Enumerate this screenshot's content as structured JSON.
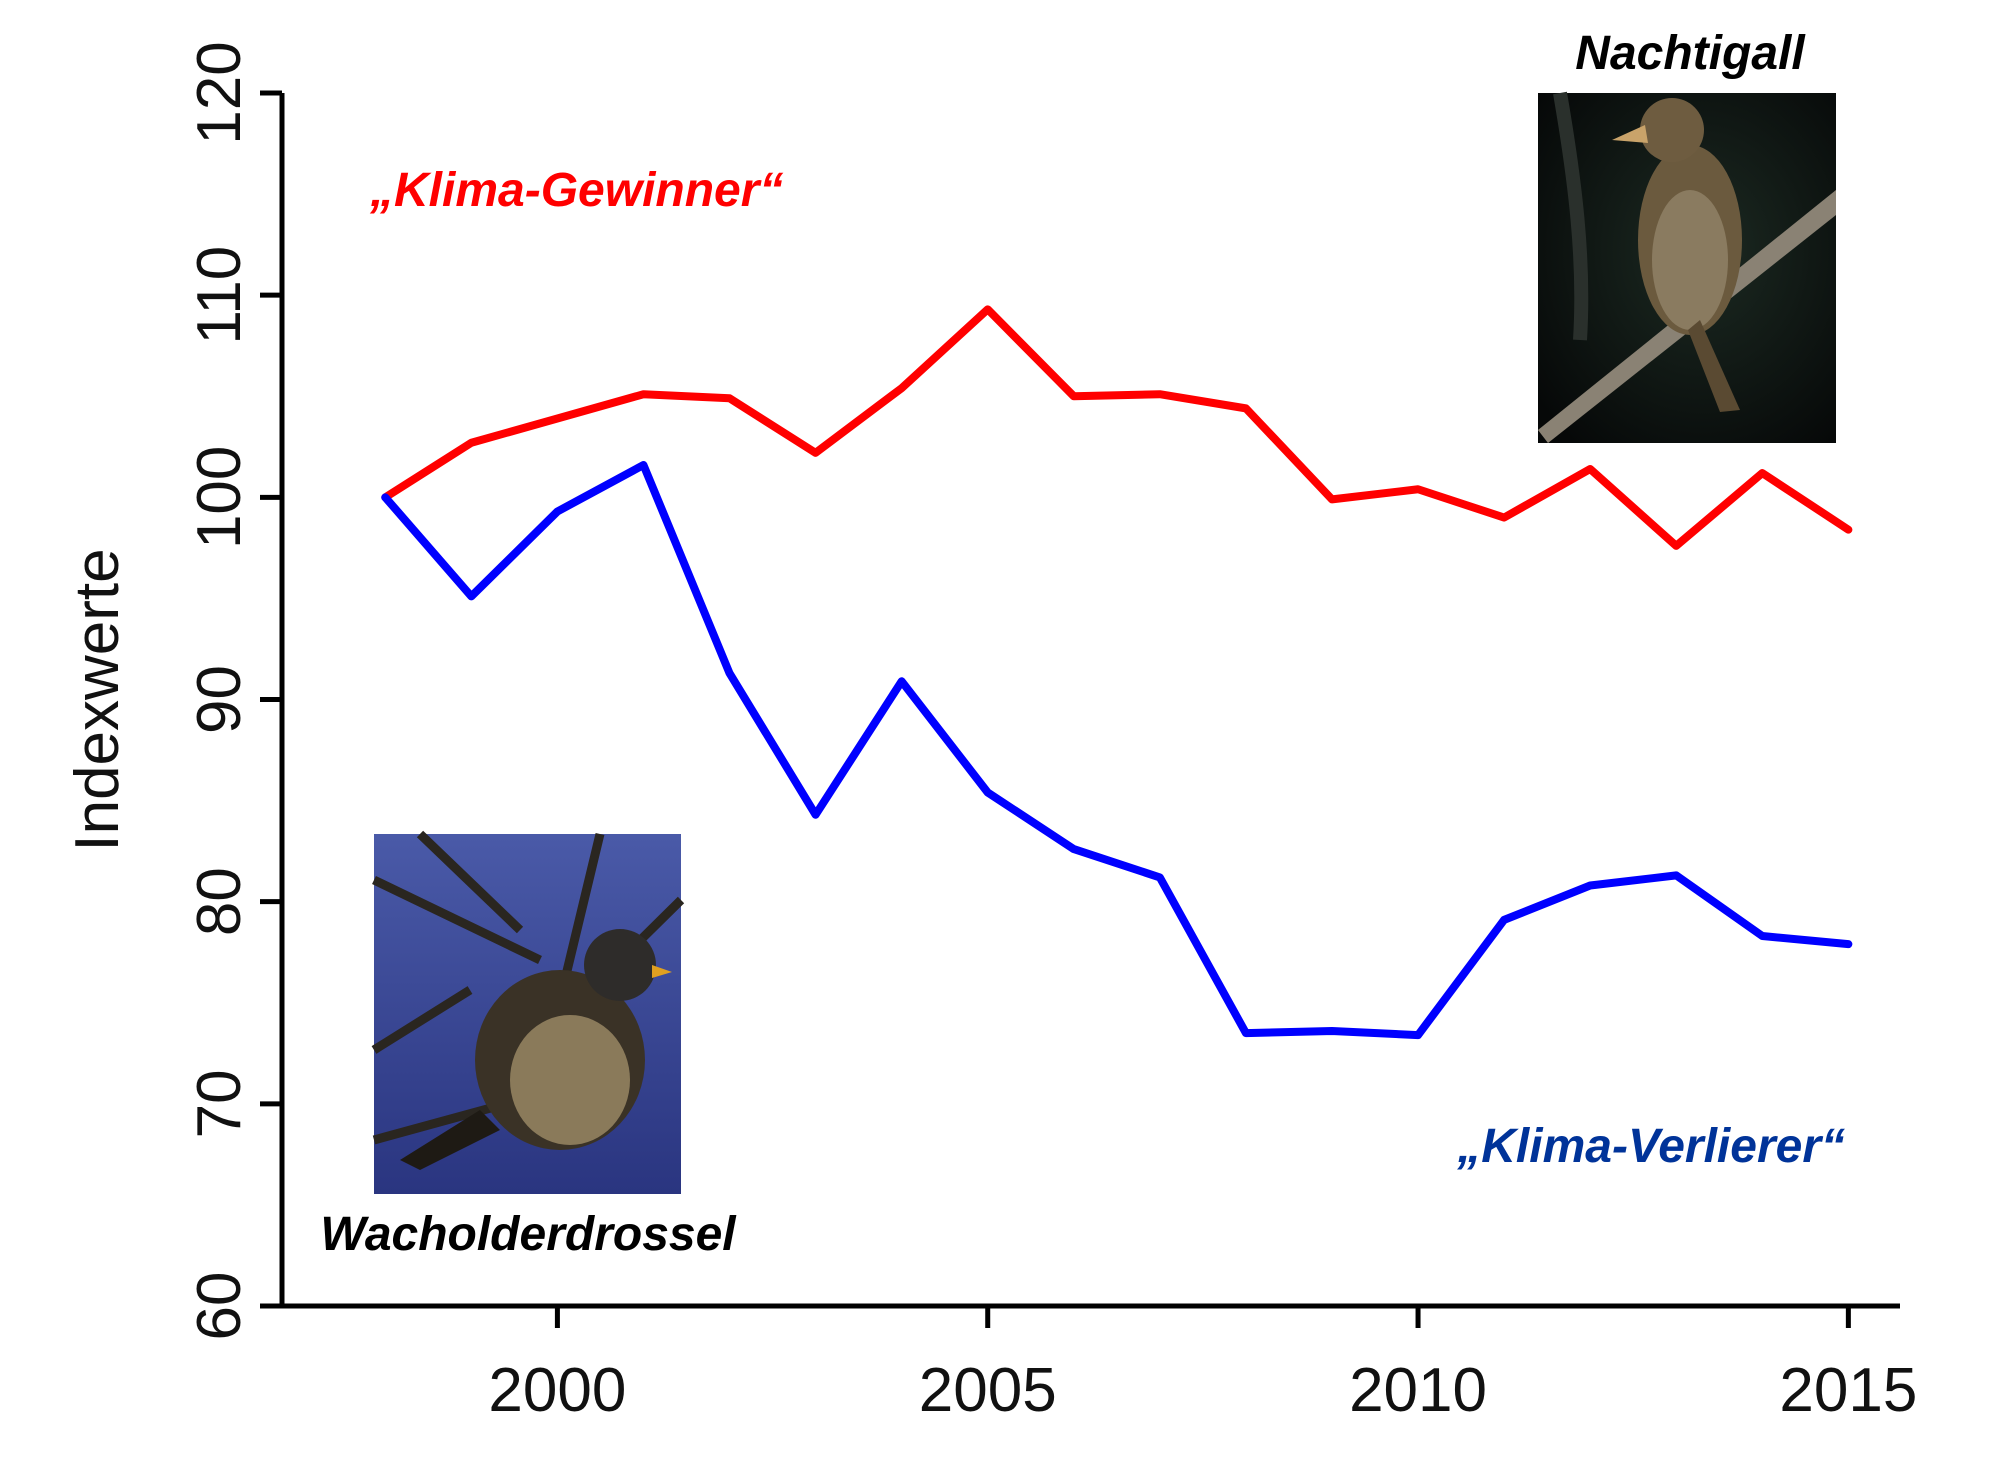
{
  "chart_data": {
    "type": "line",
    "ylabel": "Indexwerte",
    "xlabel": "",
    "ylim": [
      60,
      120
    ],
    "xlim": [
      1996.8,
      2015.6
    ],
    "yticks": [
      60,
      70,
      80,
      90,
      100,
      110,
      120
    ],
    "xticks": [
      2000,
      2005,
      2010,
      2015
    ],
    "grid": false,
    "x": [
      1998,
      1999,
      2000,
      2001,
      2002,
      2003,
      2004,
      2005,
      2006,
      2007,
      2008,
      2009,
      2010,
      2011,
      2012,
      2013,
      2014,
      2015
    ],
    "series": [
      {
        "label_text": "„Klima-Gewinner“",
        "color": "#ff0000",
        "values": [
          100.0,
          102.7,
          103.9,
          105.1,
          104.9,
          102.2,
          105.4,
          109.3,
          105.0,
          105.1,
          104.4,
          99.9,
          100.4,
          99.0,
          101.4,
          97.6,
          101.2,
          98.4
        ]
      },
      {
        "label_text": "„Klima-Verlierer“",
        "color": "#0000ff",
        "values": [
          100.0,
          95.1,
          99.3,
          101.6,
          91.3,
          84.3,
          90.9,
          85.4,
          82.6,
          81.2,
          73.5,
          73.6,
          73.4,
          79.1,
          80.8,
          81.3,
          78.3,
          77.9
        ]
      }
    ],
    "annotations": {
      "winner_color": "#ff0000",
      "loser_color": "#003399",
      "species_top": "Nachtigall",
      "species_bottom": "Wacholderdrossel"
    }
  }
}
